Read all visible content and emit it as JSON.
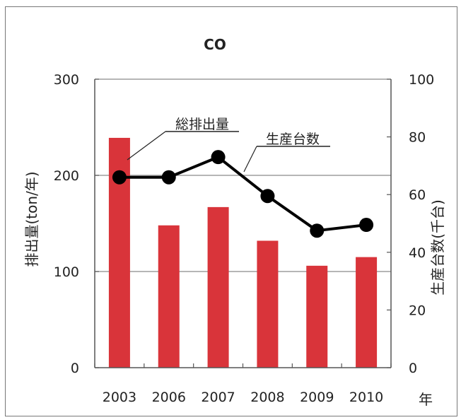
{
  "chart_data": {
    "type": "bar",
    "title": "CO",
    "categories": [
      "2003",
      "2006",
      "2007",
      "2008",
      "2009",
      "2010"
    ],
    "xlabel": "年",
    "ylabel": "排出量(ton/年)",
    "y2label": "生産台数(千台)",
    "ylim": [
      0,
      300
    ],
    "y2lim": [
      0,
      100
    ],
    "yticks": [
      0,
      100,
      200,
      300
    ],
    "y2ticks": [
      0,
      20,
      40,
      60,
      80,
      100
    ],
    "grid": "horizontal",
    "series": [
      {
        "name": "総排出量",
        "type": "bar",
        "axis": "left",
        "values": [
          239,
          148,
          167,
          132,
          106,
          115
        ],
        "color": "#d9343a"
      },
      {
        "name": "生産台数",
        "type": "line",
        "axis": "right",
        "values": [
          66,
          66,
          73,
          59.5,
          47.5,
          49.5
        ],
        "color": "#000000"
      }
    ],
    "annotations": [
      "総排出量",
      "生産台数"
    ]
  }
}
